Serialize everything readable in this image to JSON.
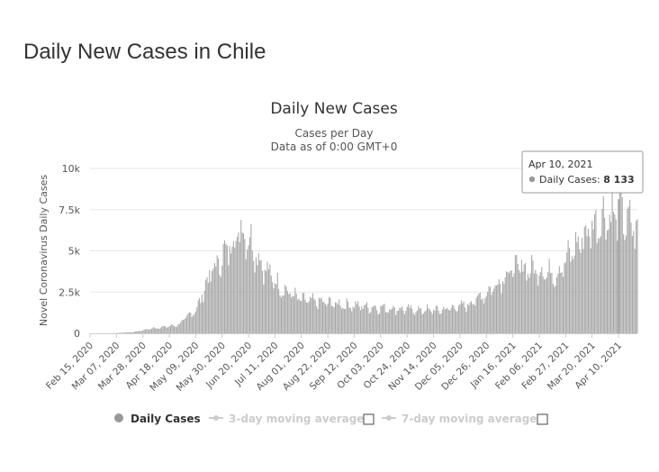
{
  "page": {
    "heading": "Daily New Cases in Chile"
  },
  "chart_data": {
    "type": "bar",
    "title": "Daily New Cases",
    "subtitle_lines": [
      "Cases per Day",
      "Data as of 0:00 GMT+0"
    ],
    "ylabel": "Novel Coronavirus Daily Cases",
    "xlabel": "",
    "ylim": [
      0,
      10000
    ],
    "yticks": [
      {
        "value": 0,
        "label": "0"
      },
      {
        "value": 2500,
        "label": "2.5k"
      },
      {
        "value": 5000,
        "label": "5k"
      },
      {
        "value": 7500,
        "label": "7.5k"
      },
      {
        "value": 10000,
        "label": "10k"
      }
    ],
    "grid": true,
    "x_start": "2020-02-15",
    "x_end": "2021-04-25",
    "xtick_dates": [
      "2020-02-15",
      "2020-03-07",
      "2020-03-28",
      "2020-04-18",
      "2020-05-09",
      "2020-05-30",
      "2020-06-20",
      "2020-07-11",
      "2020-08-01",
      "2020-08-22",
      "2020-09-12",
      "2020-10-03",
      "2020-10-24",
      "2020-11-14",
      "2020-12-05",
      "2020-12-26",
      "2021-01-16",
      "2021-02-06",
      "2021-02-27",
      "2021-03-20",
      "2021-04-10"
    ],
    "xtick_labels": [
      "Feb 15, 2020",
      "Mar 07, 2020",
      "Mar 28, 2020",
      "Apr 18, 2020",
      "May 09, 2020",
      "May 30, 2020",
      "Jun 20, 2020",
      "Jul 11, 2020",
      "Aug 01, 2020",
      "Aug 22, 2020",
      "Sep 12, 2020",
      "Oct 03, 2020",
      "Oct 24, 2020",
      "Nov 14, 2020",
      "Dec 05, 2020",
      "Dec 26, 2020",
      "Jan 16, 2021",
      "Feb 06, 2021",
      "Feb 27, 2021",
      "Mar 20, 2021",
      "Apr 10, 2021"
    ],
    "series": [
      {
        "name": "Daily Cases",
        "color": "#999999",
        "trend": [
          {
            "x": "2020-02-15",
            "y": 0
          },
          {
            "x": "2020-03-03",
            "y": 0
          },
          {
            "x": "2020-03-20",
            "y": 70
          },
          {
            "x": "2020-04-05",
            "y": 300
          },
          {
            "x": "2020-04-25",
            "y": 500
          },
          {
            "x": "2020-05-10",
            "y": 1500
          },
          {
            "x": "2020-05-20",
            "y": 3500
          },
          {
            "x": "2020-06-01",
            "y": 4800
          },
          {
            "x": "2020-06-14",
            "y": 6300
          },
          {
            "x": "2020-06-20",
            "y": 5800
          },
          {
            "x": "2020-07-01",
            "y": 4100
          },
          {
            "x": "2020-07-15",
            "y": 2800
          },
          {
            "x": "2020-08-01",
            "y": 2000
          },
          {
            "x": "2020-09-01",
            "y": 1750
          },
          {
            "x": "2020-10-01",
            "y": 1550
          },
          {
            "x": "2020-11-01",
            "y": 1400
          },
          {
            "x": "2020-11-20",
            "y": 1400
          },
          {
            "x": "2020-12-10",
            "y": 1700
          },
          {
            "x": "2020-12-26",
            "y": 2400
          },
          {
            "x": "2021-01-10",
            "y": 3500
          },
          {
            "x": "2021-01-20",
            "y": 4000
          },
          {
            "x": "2021-02-05",
            "y": 3800
          },
          {
            "x": "2021-02-20",
            "y": 3600
          },
          {
            "x": "2021-03-05",
            "y": 5000
          },
          {
            "x": "2021-03-15",
            "y": 6000
          },
          {
            "x": "2021-03-28",
            "y": 7000
          },
          {
            "x": "2021-04-10",
            "y": 7200
          },
          {
            "x": "2021-04-25",
            "y": 6200
          }
        ],
        "highlight": {
          "x": "2021-04-10",
          "y": 8133
        }
      },
      {
        "name": "3-day moving average",
        "visible": false
      },
      {
        "name": "7-day moving average",
        "visible": false
      }
    ],
    "tooltip": {
      "date": "Apr 10, 2021",
      "series": "Daily Cases",
      "value": "8 133"
    },
    "legend": "bottom-center"
  },
  "legend": [
    {
      "label": "Daily Cases",
      "active": true,
      "color": "#999999"
    },
    {
      "label": "3-day moving average",
      "active": false,
      "color": "#cccccc"
    },
    {
      "label": "7-day moving average",
      "active": false,
      "color": "#cccccc"
    }
  ]
}
